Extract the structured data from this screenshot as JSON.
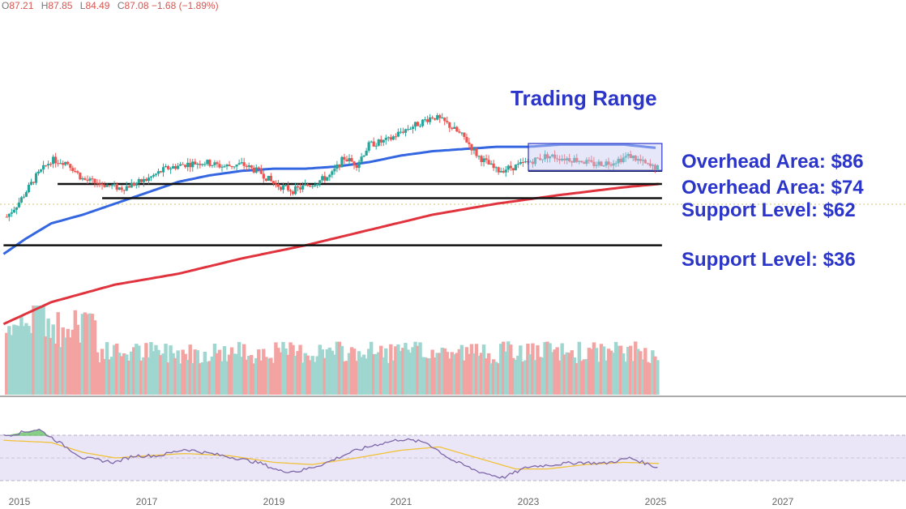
{
  "ohlc": {
    "open_label": "O",
    "open": "87.21",
    "high_label": "H",
    "high": "87.85",
    "low_label": "L",
    "low": "84.49",
    "close_label": "C",
    "close": "87.08",
    "change": "−1.68 (−1.89%)"
  },
  "colors": {
    "up": "#26a69a",
    "down": "#ef5350",
    "volume_up": "#9fd6cf",
    "volume_down": "#f3a3a1",
    "ma_fast": "#3366e0",
    "ma_slow": "#e0333d",
    "annotation": "#2b35c9",
    "rsi_line": "#7e67a8",
    "rsi_signal": "#f0c23a",
    "rsi_band": "#ebe6f7",
    "range_box": "#c9c9f5"
  },
  "annotations": {
    "trading_range": "Trading Range",
    "level_86": "Overhead Area: $86",
    "level_74": "Overhead Area: $74",
    "level_62": "Support Level: $62",
    "level_36": "Support Level: $36"
  },
  "chart_data": {
    "type": "candlestick",
    "x_axis": {
      "ticks": [
        "2015",
        "2017",
        "2019",
        "2021",
        "2023",
        "2025",
        "2027"
      ],
      "range": [
        2014.75,
        2028.6
      ]
    },
    "y_range": [
      20,
      120
    ],
    "price_key_points": [
      [
        2014.8,
        65
      ],
      [
        2015.0,
        72
      ],
      [
        2015.25,
        83
      ],
      [
        2015.5,
        91
      ],
      [
        2015.75,
        90
      ],
      [
        2016.0,
        82
      ],
      [
        2016.3,
        80
      ],
      [
        2016.6,
        78
      ],
      [
        2017.0,
        82
      ],
      [
        2017.3,
        87
      ],
      [
        2017.6,
        89
      ],
      [
        2017.9,
        90
      ],
      [
        2018.2,
        88
      ],
      [
        2018.5,
        89
      ],
      [
        2018.8,
        85
      ],
      [
        2019.0,
        80
      ],
      [
        2019.3,
        77
      ],
      [
        2019.6,
        80
      ],
      [
        2019.9,
        84
      ],
      [
        2020.1,
        92
      ],
      [
        2020.3,
        89
      ],
      [
        2020.5,
        98
      ],
      [
        2020.8,
        100
      ],
      [
        2021.0,
        104
      ],
      [
        2021.3,
        108
      ],
      [
        2021.5,
        111
      ],
      [
        2021.7,
        108
      ],
      [
        2022.0,
        101
      ],
      [
        2022.2,
        93
      ],
      [
        2022.5,
        86
      ],
      [
        2022.8,
        88
      ],
      [
        2023.0,
        90
      ],
      [
        2023.3,
        93
      ],
      [
        2023.5,
        92
      ],
      [
        2023.8,
        91
      ],
      [
        2024.0,
        89
      ],
      [
        2024.3,
        90
      ],
      [
        2024.6,
        93
      ],
      [
        2024.9,
        88
      ],
      [
        2025.05,
        87.08
      ]
    ],
    "moving_averages": [
      {
        "key_points": [
          [
            2014.75,
            48
          ],
          [
            2015.1,
            55
          ],
          [
            2015.5,
            62
          ],
          [
            2016.0,
            66
          ],
          [
            2016.5,
            71
          ],
          [
            2017.0,
            76
          ],
          [
            2017.5,
            81
          ],
          [
            2018.0,
            84
          ],
          [
            2018.5,
            86
          ],
          [
            2019.0,
            87
          ],
          [
            2019.5,
            87
          ],
          [
            2020.0,
            88
          ],
          [
            2020.5,
            90
          ],
          [
            2021.0,
            93
          ],
          [
            2021.5,
            95
          ],
          [
            2022.0,
            96
          ],
          [
            2022.5,
            97
          ],
          [
            2023.0,
            97
          ],
          [
            2023.5,
            98
          ],
          [
            2024.0,
            98
          ],
          [
            2024.5,
            98
          ],
          [
            2025.0,
            96.5
          ]
        ]
      },
      {
        "key_points": [
          [
            2014.75,
            16
          ],
          [
            2015.5,
            26
          ],
          [
            2016.5,
            34
          ],
          [
            2017.5,
            39
          ],
          [
            2018.5,
            46
          ],
          [
            2019.5,
            52
          ],
          [
            2020.5,
            59
          ],
          [
            2021.5,
            66
          ],
          [
            2022.5,
            71
          ],
          [
            2023.5,
            75
          ],
          [
            2024.5,
            78.5
          ],
          [
            2025.05,
            80
          ]
        ]
      }
    ],
    "levels": [
      {
        "value": 86,
        "from": 2023.0,
        "to": 2025.1
      },
      {
        "value": 80,
        "from": 2015.6,
        "to": 2025.1
      },
      {
        "value": 73.5,
        "from": 2016.3,
        "to": 2025.1
      },
      {
        "value": 52,
        "from": 2014.75,
        "to": 2025.1
      }
    ],
    "trading_range": {
      "x": [
        2023.0,
        2025.1
      ],
      "y": [
        86,
        98.5
      ]
    },
    "rsi": {
      "band": [
        30,
        70
      ],
      "line_key_points": [
        [
          2014.75,
          70
        ],
        [
          2015.3,
          76
        ],
        [
          2015.6,
          65
        ],
        [
          2016.0,
          50
        ],
        [
          2016.5,
          46
        ],
        [
          2016.8,
          52
        ],
        [
          2017.2,
          52
        ],
        [
          2017.6,
          58
        ],
        [
          2018.0,
          54
        ],
        [
          2018.4,
          50
        ],
        [
          2018.8,
          45
        ],
        [
          2019.1,
          38
        ],
        [
          2019.4,
          38
        ],
        [
          2019.8,
          45
        ],
        [
          2020.2,
          55
        ],
        [
          2020.6,
          62
        ],
        [
          2021.0,
          67
        ],
        [
          2021.4,
          64
        ],
        [
          2021.8,
          48
        ],
        [
          2022.2,
          38
        ],
        [
          2022.6,
          32
        ],
        [
          2023.0,
          42
        ],
        [
          2023.4,
          44
        ],
        [
          2023.8,
          46
        ],
        [
          2024.2,
          45
        ],
        [
          2024.6,
          50
        ],
        [
          2025.05,
          41
        ]
      ],
      "signal_key_points": [
        [
          2014.75,
          66
        ],
        [
          2015.5,
          64
        ],
        [
          2016.0,
          55
        ],
        [
          2016.5,
          50
        ],
        [
          2017.0,
          52
        ],
        [
          2017.6,
          54
        ],
        [
          2018.3,
          52
        ],
        [
          2019.0,
          46
        ],
        [
          2019.6,
          44
        ],
        [
          2020.3,
          50
        ],
        [
          2021.0,
          57
        ],
        [
          2021.6,
          60
        ],
        [
          2022.2,
          50
        ],
        [
          2022.8,
          40
        ],
        [
          2023.3,
          40
        ],
        [
          2023.9,
          44
        ],
        [
          2024.5,
          46
        ],
        [
          2025.05,
          45
        ]
      ]
    }
  }
}
